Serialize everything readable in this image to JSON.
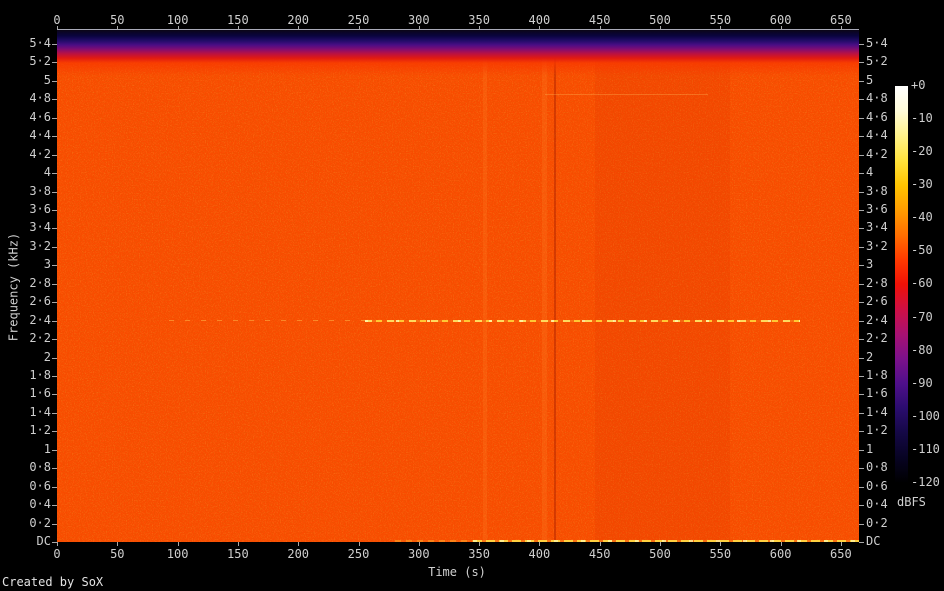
{
  "footer": {
    "credit": "Created by SoX"
  },
  "axes": {
    "x_title": "Time (s)",
    "y_title": "Frequency (kHz)",
    "x_ticks": [
      "0",
      "50",
      "100",
      "150",
      "200",
      "250",
      "300",
      "350",
      "400",
      "450",
      "500",
      "550",
      "600",
      "650"
    ],
    "y_ticks": [
      "5·4",
      "5·2",
      "5",
      "4·8",
      "4·6",
      "4·4",
      "4·2",
      "4",
      "3·8",
      "3·6",
      "3·4",
      "3·2",
      "3",
      "2·8",
      "2·6",
      "2·4",
      "2·2",
      "2",
      "1·8",
      "1·6",
      "1·4",
      "1·2",
      "1",
      "0·8",
      "0·6",
      "0·4",
      "0·2",
      "DC"
    ]
  },
  "colorbar": {
    "labels": [
      "+0",
      "-10",
      "-20",
      "-30",
      "-40",
      "-50",
      "-60",
      "-70",
      "-80",
      "-90",
      "-100",
      "-110",
      "-120"
    ],
    "unit": "dBFS",
    "gradient": [
      "#ffffff",
      "#fffbd9",
      "#fff28a",
      "#ffe23c",
      "#ffc400",
      "#ff9d00",
      "#ff6f00",
      "#ff3a00",
      "#f01107",
      "#cf0f45",
      "#a81172",
      "#7c118b",
      "#4f0f8b",
      "#2a0c6e",
      "#140845",
      "#070322",
      "#000000"
    ]
  },
  "chart_data": {
    "type": "heatmap",
    "title": "",
    "xlabel": "Time (s)",
    "ylabel": "Frequency (kHz)",
    "zlabel": "dBFS",
    "x_range_s": [
      0,
      665
    ],
    "y_range_khz": [
      0,
      5.55
    ],
    "z_range_dbfs": [
      -120,
      0
    ],
    "background_noise_level_dbfs": -42,
    "background_color": "#fa4b00",
    "low_energy_top_band": {
      "freq_khz_from": 5.25,
      "freq_khz_to": 5.55,
      "level_dbfs": -115
    },
    "tones": [
      {
        "freq_khz": 2.4,
        "segments": [
          {
            "t_from_s": 93,
            "t_to_s": 255,
            "level_dbfs": -32,
            "style": "faint"
          },
          {
            "t_from_s": 255,
            "t_to_s": 616,
            "level_dbfs": -20,
            "style": "strong"
          }
        ]
      },
      {
        "freq_khz": 4.85,
        "segments": [
          {
            "t_from_s": 405,
            "t_to_s": 540,
            "level_dbfs": -36,
            "style": "mid"
          }
        ]
      },
      {
        "freq_khz": 0.01,
        "segments": [
          {
            "t_from_s": 280,
            "t_to_s": 345,
            "level_dbfs": -32,
            "style": "dc_dim"
          },
          {
            "t_from_s": 345,
            "t_to_s": 665,
            "level_dbfs": -18,
            "style": "dc_bright"
          }
        ]
      }
    ],
    "vertical_streaks": [
      {
        "t_center_s": 355,
        "width_s": 3,
        "shade": "light"
      },
      {
        "t_center_s": 404,
        "width_s": 4,
        "shade": "light"
      },
      {
        "t_center_s": 413,
        "width_s": 2,
        "shade": "dark"
      },
      {
        "t_center_s": 502,
        "width_s": 112,
        "shade": "dim"
      }
    ]
  }
}
